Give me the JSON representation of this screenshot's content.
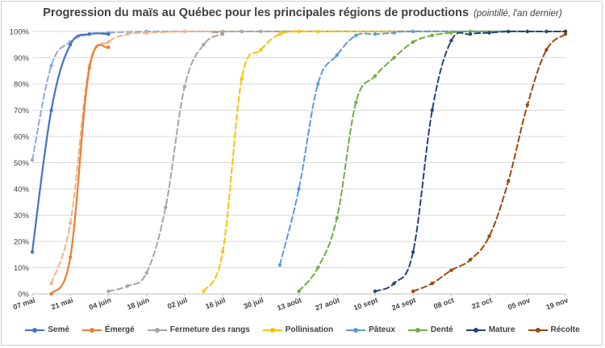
{
  "title": "Progression du maïs au Québec pour les principales régions de productions",
  "subtitle": "(pointillé, l'an dernier)",
  "chart_data": {
    "type": "line",
    "title": "Progression du maïs au Québec pour les principales régions de productions",
    "subtitle": "(pointillé, l'an dernier)",
    "xlabel": "",
    "ylabel": "",
    "x_axis": {
      "type": "date",
      "min": "2019-05-07",
      "max": "2019-11-19",
      "tick_labels": [
        "07 mai",
        "21 mai",
        "04 juin",
        "18 juin",
        "02 juil",
        "16 juil",
        "30 juil",
        "13 août",
        "27 août",
        "10 sept",
        "24 sept",
        "08 oct",
        "22 oct",
        "05 nov",
        "19 nov"
      ]
    },
    "y_axis": {
      "min": 0,
      "max": 100,
      "unit": "%",
      "tick_labels": [
        "0%",
        "10%",
        "20%",
        "30%",
        "40%",
        "50%",
        "60%",
        "70%",
        "80%",
        "90%",
        "100%"
      ]
    },
    "grid": "horizontal",
    "legend_position": "bottom",
    "series": [
      {
        "name": "Semé",
        "color": "#4472c4",
        "style": "solid",
        "points": [
          [
            "2019-05-07",
            16
          ],
          [
            "2019-05-14",
            70
          ],
          [
            "2019-05-21",
            95
          ],
          [
            "2019-05-28",
            99
          ],
          [
            "2019-06-04",
            99
          ]
        ]
      },
      {
        "name": "Semé",
        "color": "#8eaadb",
        "style": "dashed",
        "points": [
          [
            "2019-05-07",
            51
          ],
          [
            "2019-05-14",
            87
          ],
          [
            "2019-05-21",
            96
          ],
          [
            "2019-05-28",
            99
          ],
          [
            "2019-06-04",
            99.5
          ],
          [
            "2019-06-18",
            100
          ],
          [
            "2019-07-16",
            100
          ],
          [
            "2019-07-30",
            100
          ],
          [
            "2019-11-19",
            100
          ]
        ]
      },
      {
        "name": "Émergé",
        "color": "#ed7d31",
        "style": "solid",
        "points": [
          [
            "2019-05-14",
            0
          ],
          [
            "2019-05-21",
            14
          ],
          [
            "2019-05-28",
            86
          ],
          [
            "2019-06-04",
            94
          ]
        ]
      },
      {
        "name": "Émergé",
        "color": "#f4b183",
        "style": "dashed",
        "points": [
          [
            "2019-05-14",
            4
          ],
          [
            "2019-05-21",
            27
          ],
          [
            "2019-05-28",
            87
          ],
          [
            "2019-06-04",
            96
          ],
          [
            "2019-06-11",
            99
          ],
          [
            "2019-06-18",
            99.5
          ],
          [
            "2019-07-02",
            100
          ],
          [
            "2019-07-16",
            100
          ],
          [
            "2019-11-19",
            100
          ]
        ]
      },
      {
        "name": "Fermeture des rangs",
        "color": "#a5a5a5",
        "style": "dashed",
        "points": [
          [
            "2019-06-04",
            1
          ],
          [
            "2019-06-11",
            3
          ],
          [
            "2019-06-18",
            8
          ],
          [
            "2019-06-25",
            33
          ],
          [
            "2019-07-02",
            79
          ],
          [
            "2019-07-09",
            95
          ],
          [
            "2019-07-16",
            99
          ],
          [
            "2019-07-23",
            100
          ],
          [
            "2019-11-19",
            100
          ]
        ]
      },
      {
        "name": "Pollinisation",
        "color": "#ffc000",
        "style": "dashed",
        "points": [
          [
            "2019-07-09",
            1
          ],
          [
            "2019-07-16",
            16
          ],
          [
            "2019-07-23",
            82
          ],
          [
            "2019-07-30",
            93
          ],
          [
            "2019-08-06",
            99
          ],
          [
            "2019-08-13",
            100
          ],
          [
            "2019-08-20",
            100
          ],
          [
            "2019-11-19",
            100
          ]
        ]
      },
      {
        "name": "Pâteux",
        "color": "#5b9bd5",
        "style": "dashed",
        "points": [
          [
            "2019-08-06",
            11
          ],
          [
            "2019-08-13",
            40
          ],
          [
            "2019-08-20",
            80
          ],
          [
            "2019-08-27",
            91
          ],
          [
            "2019-09-03",
            98.5
          ],
          [
            "2019-09-10",
            99
          ],
          [
            "2019-09-17",
            99.5
          ],
          [
            "2019-09-24",
            100
          ],
          [
            "2019-11-19",
            100
          ]
        ]
      },
      {
        "name": "Denté",
        "color": "#70ad47",
        "style": "dashed",
        "points": [
          [
            "2019-08-13",
            1
          ],
          [
            "2019-08-20",
            10
          ],
          [
            "2019-08-27",
            29
          ],
          [
            "2019-09-03",
            73
          ],
          [
            "2019-09-10",
            83
          ],
          [
            "2019-09-17",
            90
          ],
          [
            "2019-09-24",
            96
          ],
          [
            "2019-10-01",
            98.5
          ],
          [
            "2019-10-08",
            99.5
          ],
          [
            "2019-10-15",
            100
          ],
          [
            "2019-11-19",
            100
          ]
        ]
      },
      {
        "name": "Mature",
        "color": "#264478",
        "style": "dashed",
        "points": [
          [
            "2019-09-10",
            1
          ],
          [
            "2019-09-17",
            4
          ],
          [
            "2019-09-24",
            16
          ],
          [
            "2019-10-01",
            70
          ],
          [
            "2019-10-08",
            96.5
          ],
          [
            "2019-10-15",
            99
          ],
          [
            "2019-10-22",
            99.5
          ],
          [
            "2019-10-29",
            100
          ],
          [
            "2019-11-05",
            100
          ],
          [
            "2019-11-12",
            100
          ],
          [
            "2019-11-19",
            100
          ]
        ]
      },
      {
        "name": "Récolte",
        "color": "#9e480e",
        "style": "dashed",
        "points": [
          [
            "2019-09-24",
            1
          ],
          [
            "2019-10-01",
            4
          ],
          [
            "2019-10-08",
            9
          ],
          [
            "2019-10-15",
            13
          ],
          [
            "2019-10-22",
            22
          ],
          [
            "2019-10-29",
            43
          ],
          [
            "2019-11-05",
            72
          ],
          [
            "2019-11-12",
            93
          ],
          [
            "2019-11-19",
            99
          ]
        ]
      }
    ]
  },
  "legend": [
    {
      "label": "Semé",
      "color": "#4472c4"
    },
    {
      "label": "Émergé",
      "color": "#ed7d31"
    },
    {
      "label": "Fermeture des rangs",
      "color": "#a5a5a5"
    },
    {
      "label": "Pollinisation",
      "color": "#ffc000"
    },
    {
      "label": "Pâteux",
      "color": "#5b9bd5"
    },
    {
      "label": "Denté",
      "color": "#70ad47"
    },
    {
      "label": "Mature",
      "color": "#264478"
    },
    {
      "label": "Récolte",
      "color": "#9e480e"
    }
  ]
}
